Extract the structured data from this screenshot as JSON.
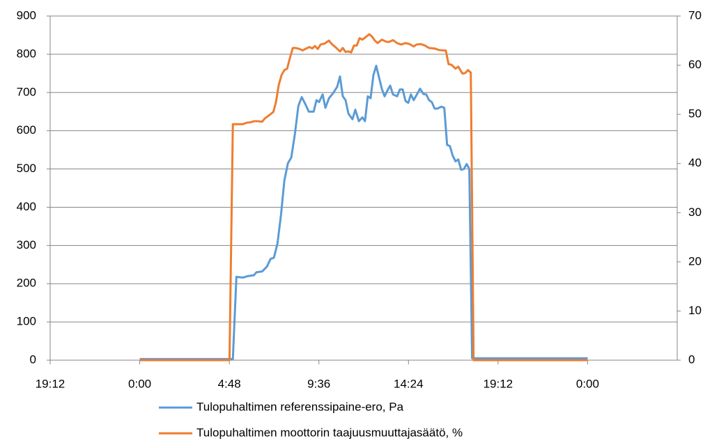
{
  "chart_data": {
    "type": "line",
    "xlim": [
      -4.8,
      28.8
    ],
    "xticks": [
      {
        "value": -4.8,
        "label": "19:12"
      },
      {
        "value": 0,
        "label": "0:00"
      },
      {
        "value": 4.8,
        "label": "4:48"
      },
      {
        "value": 9.6,
        "label": "9:36"
      },
      {
        "value": 14.4,
        "label": "14:24"
      },
      {
        "value": 19.2,
        "label": "19:12"
      },
      {
        "value": 24,
        "label": "0:00"
      }
    ],
    "ylim": [
      0,
      900
    ],
    "yticks": [
      0,
      100,
      200,
      300,
      400,
      500,
      600,
      700,
      800,
      900
    ],
    "y2lim": [
      0,
      70
    ],
    "y2ticks": [
      0,
      10,
      20,
      30,
      40,
      50,
      60,
      70
    ],
    "grid": true,
    "legend": "bottom",
    "series": [
      {
        "name": "Tulopuhaltimen referenssipaine-ero, Pa",
        "color": "#5b9bd5",
        "axis": "y",
        "x": [
          0,
          4.99,
          5.18,
          5.52,
          5.81,
          6.11,
          6.26,
          6.56,
          6.82,
          7.01,
          7.19,
          7.38,
          7.57,
          7.75,
          7.94,
          8.12,
          8.31,
          8.5,
          8.68,
          8.87,
          9.06,
          9.32,
          9.47,
          9.61,
          9.8,
          9.95,
          10.14,
          10.36,
          10.58,
          10.73,
          10.88,
          11.03,
          11.18,
          11.4,
          11.55,
          11.74,
          11.93,
          12.07,
          12.22,
          12.37,
          12.52,
          12.67,
          12.82,
          12.97,
          13.12,
          13.27,
          13.42,
          13.57,
          13.79,
          13.94,
          14.09,
          14.24,
          14.39,
          14.53,
          14.68,
          14.83,
          15.02,
          15.2,
          15.35,
          15.5,
          15.65,
          15.8,
          15.95,
          16.17,
          16.32,
          16.47,
          16.62,
          16.77,
          16.92,
          17.07,
          17.22,
          17.37,
          17.52,
          17.66,
          17.81,
          24
        ],
        "values": [
          3,
          3,
          218,
          216,
          220,
          222,
          230,
          232,
          245,
          265,
          268,
          305,
          380,
          470,
          515,
          530,
          590,
          665,
          688,
          670,
          650,
          650,
          680,
          675,
          695,
          660,
          685,
          698,
          715,
          742,
          690,
          680,
          645,
          630,
          655,
          625,
          635,
          625,
          690,
          685,
          745,
          770,
          740,
          710,
          690,
          705,
          718,
          695,
          690,
          708,
          708,
          678,
          673,
          695,
          680,
          693,
          710,
          696,
          695,
          680,
          675,
          658,
          658,
          663,
          660,
          563,
          560,
          535,
          520,
          525,
          498,
          500,
          513,
          500,
          5,
          5
        ]
      },
      {
        "name": "Tulopuhaltimen moottorin taajuusmuuttajasäätö, %",
        "color": "#ed7d31",
        "axis": "y2",
        "x": [
          0,
          4.81,
          4.99,
          5.52,
          5.74,
          5.96,
          6.11,
          6.34,
          6.56,
          6.71,
          6.93,
          7.16,
          7.3,
          7.45,
          7.6,
          7.75,
          7.9,
          8.05,
          8.2,
          8.35,
          8.57,
          8.72,
          8.87,
          9.09,
          9.24,
          9.39,
          9.54,
          9.69,
          9.91,
          10.14,
          10.29,
          10.51,
          10.73,
          10.88,
          11.03,
          11.18,
          11.33,
          11.48,
          11.63,
          11.78,
          11.93,
          12.07,
          12.3,
          12.45,
          12.6,
          12.75,
          12.97,
          13.19,
          13.34,
          13.57,
          13.79,
          14.01,
          14.24,
          14.46,
          14.68,
          14.83,
          15.06,
          15.28,
          15.5,
          15.8,
          16.02,
          16.25,
          16.4,
          16.55,
          16.7,
          16.92,
          17.07,
          17.29,
          17.44,
          17.59,
          17.74,
          17.89,
          24
        ],
        "values": [
          0,
          0,
          48,
          48,
          48.3,
          48.4,
          48.6,
          48.6,
          48.5,
          49.2,
          49.8,
          50.5,
          52.5,
          56,
          58,
          59,
          59.3,
          61.5,
          63.5,
          63.5,
          63.3,
          63,
          63.3,
          63.7,
          63.4,
          63.9,
          63.3,
          64.2,
          64.4,
          65,
          64.3,
          63.6,
          62.8,
          63.5,
          62.7,
          62.8,
          62.6,
          64,
          64,
          65.5,
          65.2,
          65.6,
          66.3,
          65.8,
          65,
          64.5,
          65.2,
          64.8,
          64.7,
          65.1,
          64.5,
          64.2,
          64.5,
          64.3,
          63.8,
          64.2,
          64.3,
          64,
          63.5,
          63.4,
          63.1,
          63,
          63,
          60.2,
          60.1,
          59.3,
          59.7,
          58.3,
          58.4,
          59,
          58.5,
          0,
          0
        ]
      }
    ]
  }
}
